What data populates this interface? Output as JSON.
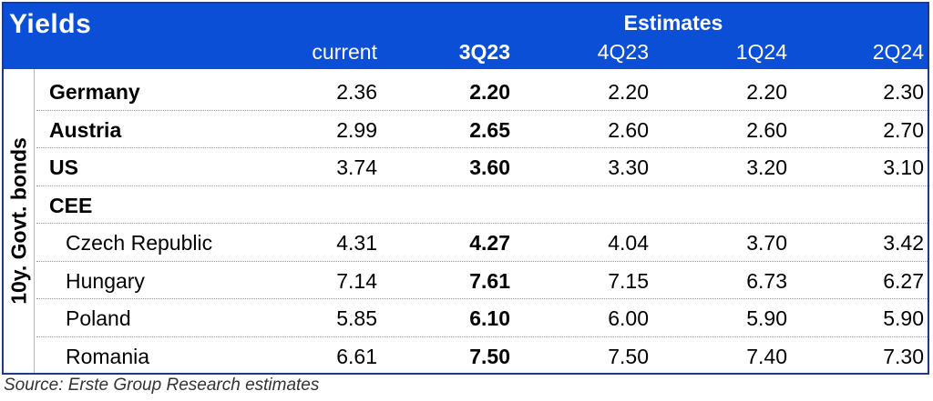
{
  "header": {
    "title": "Yields",
    "estimates": "Estimates",
    "columns": [
      "current",
      "3Q23",
      "4Q23",
      "1Q24",
      "2Q24"
    ]
  },
  "side_label": "10y. Govt. bonds",
  "rows": [
    {
      "label": "Germany",
      "type": "country",
      "values": [
        "2.36",
        "2.20",
        "2.20",
        "2.20",
        "2.30"
      ]
    },
    {
      "label": "Austria",
      "type": "country",
      "values": [
        "2.99",
        "2.65",
        "2.60",
        "2.60",
        "2.70"
      ]
    },
    {
      "label": "US",
      "type": "country",
      "values": [
        "3.74",
        "3.60",
        "3.30",
        "3.20",
        "3.10"
      ]
    },
    {
      "label": "CEE",
      "type": "country",
      "values": [
        "",
        "",
        "",
        "",
        ""
      ]
    },
    {
      "label": "Czech Republic",
      "type": "sub",
      "values": [
        "4.31",
        "4.27",
        "4.04",
        "3.70",
        "3.42"
      ]
    },
    {
      "label": "Hungary",
      "type": "sub",
      "values": [
        "7.14",
        "7.61",
        "7.15",
        "6.73",
        "6.27"
      ]
    },
    {
      "label": "Poland",
      "type": "sub",
      "values": [
        "5.85",
        "6.10",
        "6.00",
        "5.90",
        "5.90"
      ]
    },
    {
      "label": "Romania",
      "type": "sub",
      "values": [
        "6.61",
        "7.50",
        "7.50",
        "7.40",
        "7.30"
      ]
    }
  ],
  "source": "Source: Erste Group Research estimates"
}
